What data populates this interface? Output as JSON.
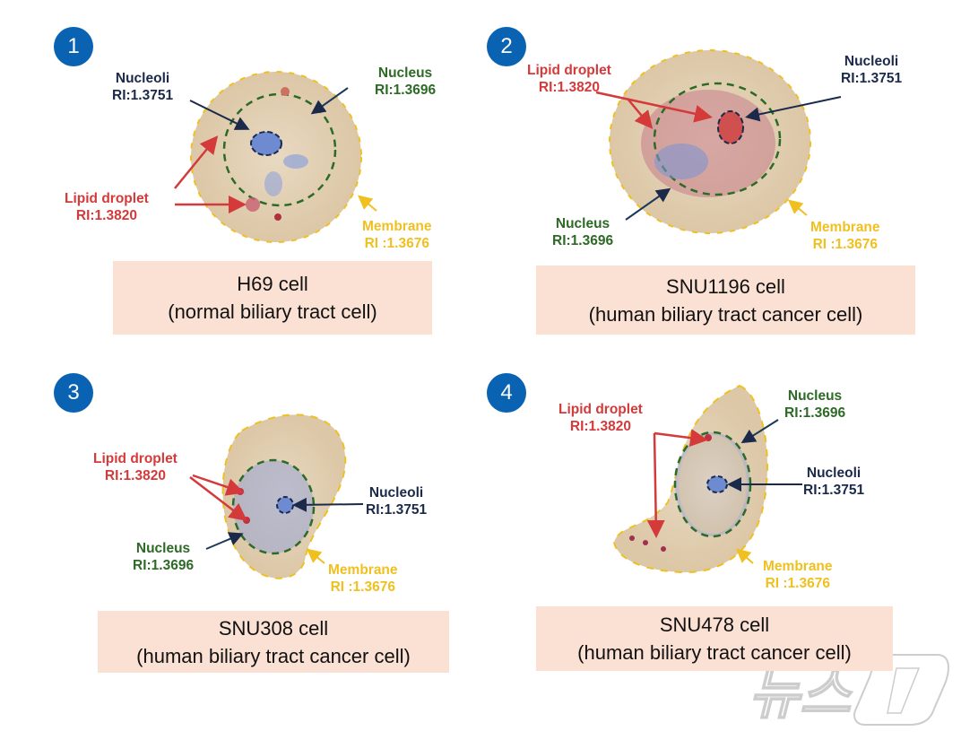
{
  "colors": {
    "badge": "#0a62b3",
    "nucleoli": "#1b2a4a",
    "nucleus": "#2d6a25",
    "lipid": "#d43a3a",
    "membrane": "#f0c020",
    "caption_bg": "#fbe0d4"
  },
  "panels": [
    {
      "number": "1",
      "nucleoli": {
        "name": "Nucleoli",
        "ri": "RI:1.3751"
      },
      "nucleus": {
        "name": "Nucleus",
        "ri": "RI:1.3696"
      },
      "lipid": {
        "name": "Lipid droplet",
        "ri": "RI:1.3820"
      },
      "membrane": {
        "name": "Membrane",
        "ri": "RI :1.3676"
      },
      "caption": {
        "line1": "H69 cell",
        "line2": "(normal biliary tract cell)"
      }
    },
    {
      "number": "2",
      "nucleoli": {
        "name": "Nucleoli",
        "ri": "RI:1.3751"
      },
      "nucleus": {
        "name": "Nucleus",
        "ri": "RI:1.3696"
      },
      "lipid": {
        "name": "Lipid droplet",
        "ri": "RI:1.3820"
      },
      "membrane": {
        "name": "Membrane",
        "ri": "RI :1.3676"
      },
      "caption": {
        "line1": "SNU1196 cell",
        "line2": "(human biliary tract cancer cell)"
      }
    },
    {
      "number": "3",
      "nucleoli": {
        "name": "Nucleoli",
        "ri": "RI:1.3751"
      },
      "nucleus": {
        "name": "Nucleus",
        "ri": "RI:1.3696"
      },
      "lipid": {
        "name": "Lipid droplet",
        "ri": "RI:1.3820"
      },
      "membrane": {
        "name": "Membrane",
        "ri": "RI :1.3676"
      },
      "caption": {
        "line1": "SNU308 cell",
        "line2": "(human biliary tract cancer cell)"
      }
    },
    {
      "number": "4",
      "nucleoli": {
        "name": "Nucleoli",
        "ri": "RI:1.3751"
      },
      "nucleus": {
        "name": "Nucleus",
        "ri": "RI:1.3696"
      },
      "lipid": {
        "name": "Lipid droplet",
        "ri": "RI:1.3820"
      },
      "membrane": {
        "name": "Membrane",
        "ri": "RI :1.3676"
      },
      "caption": {
        "line1": "SNU478 cell",
        "line2": "(human biliary tract cancer cell)"
      }
    }
  ],
  "watermark": {
    "text": "뉴스1"
  }
}
